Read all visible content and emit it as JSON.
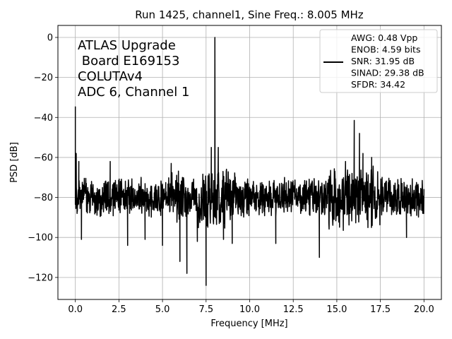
{
  "chart_data": {
    "type": "line",
    "title": "Run 1425, channel1, Sine Freq.: 8.005 MHz",
    "xlabel": "Frequency [MHz]",
    "ylabel": "PSD [dB]",
    "xlim": [
      -1.0,
      21.0
    ],
    "ylim": [
      -131,
      6
    ],
    "xticks": [
      0.0,
      2.5,
      5.0,
      7.5,
      10.0,
      12.5,
      15.0,
      17.5,
      20.0
    ],
    "xtick_labels": [
      "0.0",
      "2.5",
      "5.0",
      "7.5",
      "10.0",
      "12.5",
      "15.0",
      "17.5",
      "20.0"
    ],
    "yticks": [
      0,
      -20,
      -40,
      -60,
      -80,
      -100,
      -120
    ],
    "ytick_labels": [
      "0",
      "−20",
      "−40",
      "−60",
      "−80",
      "−100",
      "−120"
    ],
    "grid": true,
    "series": [
      {
        "color": "#000000",
        "noise_floor_db": -80,
        "points": [
          [
            0.0,
            -34.5
          ],
          [
            0.05,
            -58
          ],
          [
            0.1,
            -88
          ],
          [
            0.2,
            -62
          ],
          [
            0.35,
            -101
          ],
          [
            2.0,
            -62
          ],
          [
            2.5,
            -86
          ],
          [
            3.0,
            -104
          ],
          [
            4.0,
            -101
          ],
          [
            5.0,
            -104
          ],
          [
            5.5,
            -63
          ],
          [
            6.0,
            -112
          ],
          [
            6.4,
            -118
          ],
          [
            7.0,
            -102
          ],
          [
            7.5,
            -124
          ],
          [
            7.8,
            -55
          ],
          [
            8.005,
            0.0
          ],
          [
            8.2,
            -55
          ],
          [
            8.5,
            -101
          ],
          [
            9.0,
            -103
          ],
          [
            11.5,
            -103
          ],
          [
            12.0,
            -70
          ],
          [
            14.0,
            -110
          ],
          [
            15.5,
            -62
          ],
          [
            16.0,
            -41.5
          ],
          [
            16.3,
            -48
          ],
          [
            16.5,
            -58
          ],
          [
            17.0,
            -60
          ],
          [
            19.0,
            -100
          ],
          [
            20.0,
            -76
          ]
        ]
      }
    ],
    "legend_placement": "top-right",
    "legend_entries": [
      "AWG: 0.48 Vpp",
      "ENOB: 4.59 bits",
      "SNR: 31.95 dB",
      "SINAD: 29.38 dB",
      "SFDR: 34.42"
    ],
    "annotation_lines": [
      "ATLAS Upgrade",
      " Board E169153",
      "COLUTAv4",
      "ADC 6, Channel 1"
    ]
  }
}
